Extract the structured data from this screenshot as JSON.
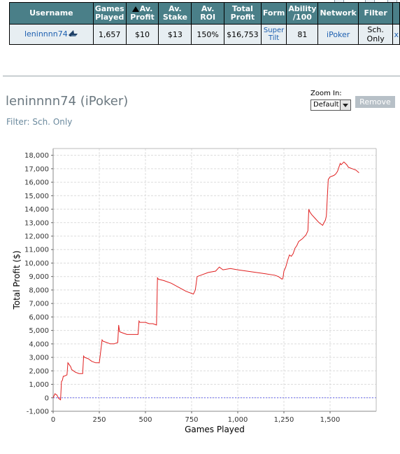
{
  "table": {
    "headers": [
      "Username",
      "Games Played",
      "Av. Profit",
      "Av. Stake",
      "Av. ROI",
      "Total Profit",
      "Form",
      "Ability /100",
      "Network",
      "Filter"
    ],
    "row": {
      "username": "leninnnn74",
      "games_played": "1,657",
      "av_profit": "$10",
      "av_stake": "$13",
      "av_roi": "150%",
      "total_profit": "$16,753",
      "form": "Super Tilt",
      "ability": "81",
      "network": "iPoker",
      "filter": "Sch. Only",
      "close": "x"
    },
    "sorted_column": "Av. Profit"
  },
  "profile": {
    "title": "leninnnn74 (iPoker)",
    "filter_text": "Filter: Sch. Only"
  },
  "zoom": {
    "label": "Zoom In:",
    "selected": "Default"
  },
  "remove_label": "Remove",
  "icons": [
    "shark-icon",
    "sort-up-icon",
    "dropdown-arrow-icon"
  ],
  "colors": {
    "header_bg": "#4a7f88",
    "row_bg": "#e7eef2",
    "link": "#1c5fb0",
    "line": "#e02020",
    "zero_line": "#6a6af0"
  },
  "chart_data": {
    "type": "line",
    "title": "",
    "xlabel": "Games Played",
    "ylabel": "Total Profit ($)",
    "xlim": [
      0,
      1750
    ],
    "ylim": [
      -1000,
      18500
    ],
    "x_ticks": [
      0,
      250,
      500,
      750,
      1000,
      1250,
      1500
    ],
    "x_tick_labels": [
      "0",
      "250",
      "500",
      "750",
      "1,000",
      "1,250",
      "1,500"
    ],
    "y_ticks": [
      -1000,
      0,
      1000,
      2000,
      3000,
      4000,
      5000,
      6000,
      7000,
      8000,
      9000,
      10000,
      11000,
      12000,
      13000,
      14000,
      15000,
      16000,
      17000,
      18000
    ],
    "y_tick_labels": [
      "-1,000",
      "0",
      "1,000",
      "2,000",
      "3,000",
      "4,000",
      "5,000",
      "6,000",
      "7,000",
      "8,000",
      "9,000",
      "10,000",
      "11,000",
      "12,000",
      "13,000",
      "14,000",
      "15,000",
      "16,000",
      "17,000",
      "18,000"
    ],
    "grid": true,
    "baseline": 0,
    "series": [
      {
        "x": [
          0,
          10,
          20,
          30,
          40,
          45,
          50,
          55,
          60,
          75,
          80,
          90,
          95,
          100,
          120,
          140,
          160,
          165,
          170,
          190,
          210,
          230,
          250,
          265,
          270,
          290,
          310,
          330,
          350,
          355,
          360,
          380,
          400,
          430,
          460,
          465,
          470,
          500,
          520,
          540,
          560,
          565,
          570,
          600,
          640,
          680,
          720,
          760,
          770,
          780,
          800,
          840,
          880,
          900,
          920,
          960,
          1000,
          1050,
          1100,
          1150,
          1200,
          1220,
          1240,
          1245,
          1250,
          1260,
          1270,
          1280,
          1290,
          1300,
          1310,
          1320,
          1330,
          1350,
          1370,
          1380,
          1385,
          1390,
          1400,
          1420,
          1440,
          1460,
          1475,
          1480,
          1490,
          1500,
          1520,
          1530,
          1540,
          1555,
          1560,
          1575,
          1590,
          1600,
          1620,
          1640,
          1657
        ],
        "y": [
          0,
          300,
          200,
          -50,
          -150,
          1200,
          1300,
          1600,
          1600,
          1700,
          2600,
          2400,
          2300,
          2100,
          1900,
          1800,
          1800,
          3100,
          3000,
          2900,
          2700,
          2600,
          2600,
          4300,
          4200,
          4100,
          4000,
          4000,
          4100,
          5400,
          4900,
          4800,
          4700,
          4700,
          4700,
          5700,
          5600,
          5600,
          5500,
          5500,
          5400,
          8900,
          8800,
          8700,
          8500,
          8200,
          7900,
          7700,
          8000,
          9000,
          9100,
          9300,
          9400,
          9700,
          9500,
          9600,
          9500,
          9400,
          9300,
          9200,
          9100,
          9000,
          8800,
          8900,
          9400,
          9700,
          10200,
          10600,
          10500,
          10700,
          11100,
          11300,
          11600,
          11800,
          12100,
          12400,
          14000,
          13800,
          13600,
          13300,
          13000,
          12800,
          13200,
          13500,
          16200,
          16400,
          16500,
          16600,
          16800,
          17400,
          17300,
          17500,
          17300,
          17100,
          17000,
          16900,
          16700
        ]
      }
    ]
  }
}
